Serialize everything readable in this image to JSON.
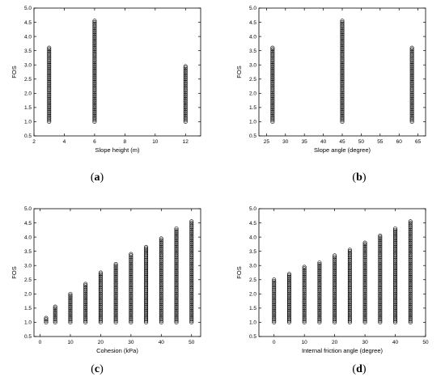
{
  "panels": [
    {
      "label_open": "(",
      "label_letter": "a",
      "label_close": ")"
    },
    {
      "label_open": "(",
      "label_letter": "b",
      "label_close": ")"
    },
    {
      "label_open": "(",
      "label_letter": "c",
      "label_close": ")"
    },
    {
      "label_open": "(",
      "label_letter": "d",
      "label_close": ")"
    }
  ],
  "chart_data": [
    {
      "type": "scatter",
      "xlabel": "Slope height (m)",
      "ylabel": "FOS",
      "xlim": [
        2,
        13
      ],
      "ylim": [
        0.5,
        5.0
      ],
      "xticks": [
        2,
        4,
        6,
        8,
        10,
        12
      ],
      "yticks": [
        0.5,
        1.0,
        1.5,
        2.0,
        2.5,
        3.0,
        3.5,
        4.0,
        4.5,
        5.0
      ],
      "marker": "open-circle",
      "columns": [
        {
          "x": 3,
          "ymin": 1.0,
          "ymax": 3.6
        },
        {
          "x": 6,
          "ymin": 1.0,
          "ymax": 4.55
        },
        {
          "x": 12,
          "ymin": 1.0,
          "ymax": 2.95
        }
      ]
    },
    {
      "type": "scatter",
      "xlabel": "Slope angle (degree)",
      "ylabel": "FOS",
      "xlim": [
        23,
        67
      ],
      "ylim": [
        0.5,
        5.0
      ],
      "xticks": [
        25,
        30,
        35,
        40,
        45,
        50,
        55,
        60,
        65
      ],
      "yticks": [
        0.5,
        1.0,
        1.5,
        2.0,
        2.5,
        3.0,
        3.5,
        4.0,
        4.5,
        5.0
      ],
      "marker": "open-circle",
      "columns": [
        {
          "x": 26.6,
          "ymin": 1.0,
          "ymax": 3.6
        },
        {
          "x": 45,
          "ymin": 1.0,
          "ymax": 4.55
        },
        {
          "x": 63.4,
          "ymin": 1.0,
          "ymax": 3.6
        }
      ]
    },
    {
      "type": "scatter",
      "xlabel": "Cohesion (kPa)",
      "ylabel": "FOS",
      "xlim": [
        -2,
        53
      ],
      "ylim": [
        0.5,
        5.0
      ],
      "xticks": [
        0,
        10,
        20,
        30,
        40,
        50
      ],
      "yticks": [
        0.5,
        1.0,
        1.5,
        2.0,
        2.5,
        3.0,
        3.5,
        4.0,
        4.5,
        5.0
      ],
      "marker": "open-circle",
      "columns": [
        {
          "x": 2,
          "ymin": 1.0,
          "ymax": 1.15
        },
        {
          "x": 5,
          "ymin": 1.0,
          "ymax": 1.55
        },
        {
          "x": 10,
          "ymin": 1.0,
          "ymax": 2.0
        },
        {
          "x": 15,
          "ymin": 1.0,
          "ymax": 2.35
        },
        {
          "x": 20,
          "ymin": 1.0,
          "ymax": 2.75
        },
        {
          "x": 25,
          "ymin": 1.0,
          "ymax": 3.05
        },
        {
          "x": 30,
          "ymin": 1.0,
          "ymax": 3.4
        },
        {
          "x": 35,
          "ymin": 1.0,
          "ymax": 3.65
        },
        {
          "x": 40,
          "ymin": 1.0,
          "ymax": 3.95
        },
        {
          "x": 45,
          "ymin": 1.0,
          "ymax": 4.3
        },
        {
          "x": 50,
          "ymin": 1.0,
          "ymax": 4.55
        }
      ]
    },
    {
      "type": "scatter",
      "xlabel": "Internal friction angle (degree)",
      "ylabel": "FOS",
      "xlim": [
        -5,
        50
      ],
      "ylim": [
        0.5,
        5.0
      ],
      "xticks": [
        0,
        10,
        20,
        30,
        40,
        50
      ],
      "yticks": [
        0.5,
        1.0,
        1.5,
        2.0,
        2.5,
        3.0,
        3.5,
        4.0,
        4.5,
        5.0
      ],
      "marker": "open-circle",
      "columns": [
        {
          "x": 0,
          "ymin": 1.0,
          "ymax": 2.5
        },
        {
          "x": 5,
          "ymin": 1.0,
          "ymax": 2.7
        },
        {
          "x": 10,
          "ymin": 1.0,
          "ymax": 2.95
        },
        {
          "x": 15,
          "ymin": 1.0,
          "ymax": 3.1
        },
        {
          "x": 20,
          "ymin": 1.0,
          "ymax": 3.35
        },
        {
          "x": 25,
          "ymin": 1.0,
          "ymax": 3.55
        },
        {
          "x": 30,
          "ymin": 1.0,
          "ymax": 3.8
        },
        {
          "x": 35,
          "ymin": 1.0,
          "ymax": 4.05
        },
        {
          "x": 40,
          "ymin": 1.0,
          "ymax": 4.3
        },
        {
          "x": 45,
          "ymin": 1.0,
          "ymax": 4.55
        }
      ]
    }
  ]
}
